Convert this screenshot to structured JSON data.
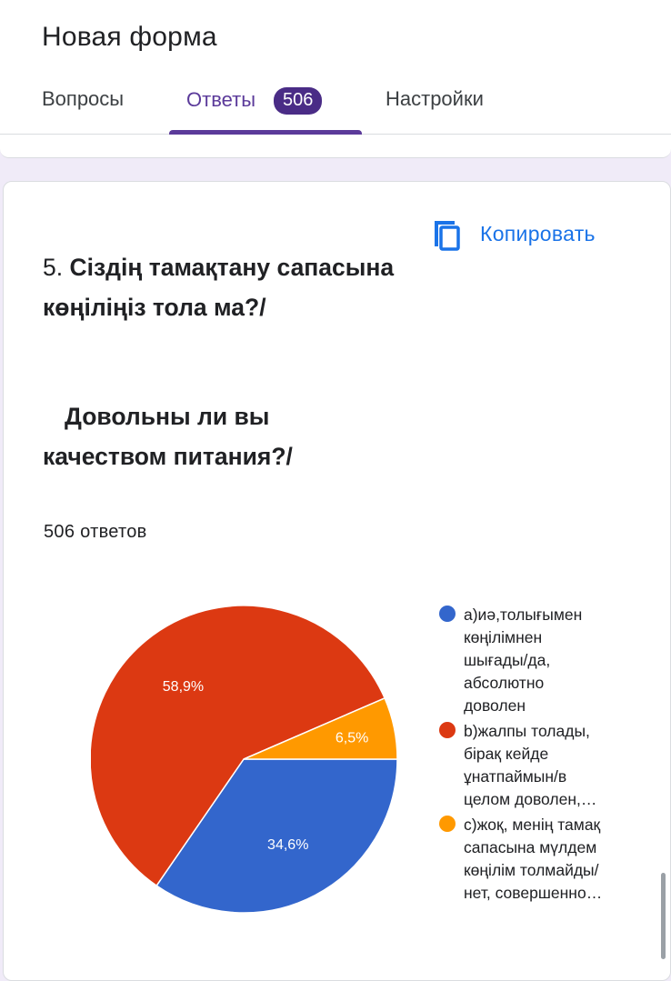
{
  "header": {
    "form_title": "Новая форма",
    "tabs": {
      "questions": "Вопросы",
      "answers": "Ответы",
      "answers_count": "506",
      "settings": "Настройки"
    }
  },
  "card": {
    "copy_label": "Копировать",
    "question_number": "5.",
    "question_kk": "Сіздің тамақтану сапасына көңіліңіз тола ма?/",
    "question_ru": "Довольны ли вы качеством питания?/",
    "responses": "506 ответов"
  },
  "colors": {
    "accent": "#5b3a9a",
    "badge": "#4a2c86",
    "link": "#1a73e8"
  },
  "chart_data": {
    "type": "pie",
    "slices": [
      {
        "label": "а)иә,толығымен\nкөңілімнен\nшығады/да,\nабсолютно\nдоволен",
        "value": 34.6,
        "display": "34,6%",
        "color": "#3366cc"
      },
      {
        "label": "b)жалпы толады,\nбірақ кейде\nұнатпаймын/в\nцелом доволен,…",
        "value": 58.9,
        "display": "58,9%",
        "color": "#dc3912"
      },
      {
        "label": "c)жоқ, менің тамақ\nсапасына мүлдем\nкөңілім толмайды/\nнет, совершенно…",
        "value": 6.5,
        "display": "6,5%",
        "color": "#ff9900"
      }
    ]
  }
}
